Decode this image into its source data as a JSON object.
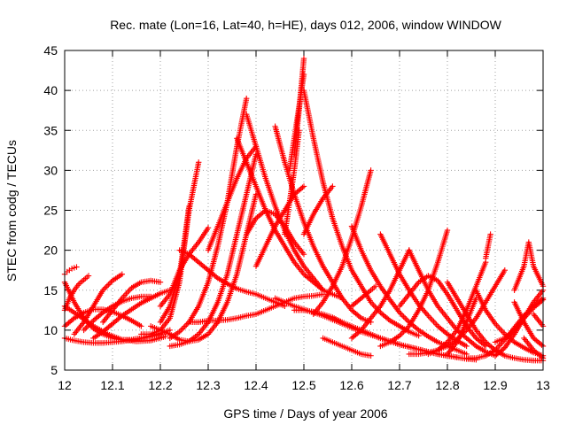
{
  "chart_data": {
    "type": "scatter",
    "title": "Rec. mate (Lon=16, Lat=40, h=HE), days 012, 2006, window WINDOW",
    "xlabel": "GPS time / Days of year 2006",
    "ylabel": "STEC from codg / TECUs",
    "xlim": [
      12,
      13
    ],
    "ylim": [
      5,
      45
    ],
    "x_ticks": [
      12,
      12.1,
      12.2,
      12.3,
      12.4,
      12.5,
      12.6,
      12.7,
      12.8,
      12.9,
      13
    ],
    "x_tick_labels": [
      "12",
      "12.1",
      "12.2",
      "12.3",
      "12.4",
      "12.5",
      "12.6",
      "12.7",
      "12.8",
      "12.9",
      "13"
    ],
    "y_ticks": [
      5,
      10,
      15,
      20,
      25,
      30,
      35,
      40,
      45
    ],
    "y_tick_labels": [
      "5",
      "10",
      "15",
      "20",
      "25",
      "30",
      "35",
      "40",
      "45"
    ],
    "grid": true,
    "marker": "+",
    "color": "#ff0000",
    "series": [
      {
        "x": [
          12.0,
          12.005,
          12.01,
          12.015,
          12.02,
          12.025
        ],
        "y": [
          17.0,
          17.3,
          17.5,
          17.7,
          17.8,
          17.9
        ]
      },
      {
        "x": [
          12.0,
          12.02,
          12.04,
          12.06,
          12.08,
          12.1,
          12.12,
          12.14,
          12.16,
          12.18,
          12.2
        ],
        "y": [
          16.0,
          13.5,
          11.5,
          10.2,
          9.5,
          9.0,
          8.8,
          8.8,
          9.0,
          9.2,
          9.5
        ]
      },
      {
        "x": [
          12.0,
          12.01,
          12.02,
          12.03,
          12.04,
          12.05
        ],
        "y": [
          12.5,
          14.0,
          15.0,
          15.8,
          16.3,
          16.8
        ]
      },
      {
        "x": [
          12.0,
          12.03,
          12.06,
          12.09,
          12.12,
          12.15,
          12.18,
          12.21
        ],
        "y": [
          13.0,
          11.8,
          10.5,
          9.5,
          8.8,
          8.6,
          8.7,
          9.2
        ]
      },
      {
        "x": [
          12.0,
          12.02,
          12.04,
          12.06,
          12.08,
          12.1,
          12.12,
          12.14,
          12.16,
          12.18,
          12.2,
          12.22
        ],
        "y": [
          9.0,
          8.7,
          8.5,
          8.4,
          8.4,
          8.5,
          8.6,
          8.8,
          9.0,
          9.3,
          9.6,
          10.0
        ]
      },
      {
        "x": [
          12.0,
          12.02,
          12.04,
          12.06,
          12.08,
          12.1,
          12.12,
          12.14,
          12.16
        ],
        "y": [
          10.5,
          11.5,
          12.2,
          12.6,
          12.6,
          12.3,
          11.8,
          11.2,
          10.5
        ]
      },
      {
        "x": [
          12.02,
          12.04,
          12.06,
          12.08,
          12.1,
          12.12
        ],
        "y": [
          9.5,
          11.0,
          13.0,
          15.0,
          16.2,
          17.0
        ]
      },
      {
        "x": [
          12.04,
          12.06,
          12.08,
          12.1,
          12.12,
          12.14,
          12.16,
          12.18
        ],
        "y": [
          10.0,
          11.2,
          12.2,
          13.0,
          13.6,
          14.0,
          14.2,
          14.2
        ]
      },
      {
        "x": [
          12.06,
          12.08,
          12.1,
          12.12,
          12.14,
          12.16,
          12.18,
          12.2,
          12.22
        ],
        "y": [
          9.0,
          9.8,
          10.8,
          11.8,
          12.6,
          13.4,
          14.0,
          14.6,
          15.0
        ]
      },
      {
        "x": [
          12.08,
          12.1,
          12.12,
          12.14,
          12.16,
          12.18,
          12.2
        ],
        "y": [
          11.0,
          12.5,
          14.0,
          15.3,
          16.0,
          16.2,
          16.0
        ]
      },
      {
        "x": [
          12.16,
          12.18,
          12.2,
          12.22,
          12.24,
          12.26,
          12.28
        ],
        "y": [
          9.5,
          9.5,
          10.0,
          11.5,
          16.0,
          25.0,
          31.0
        ]
      },
      {
        "x": [
          12.2,
          12.22,
          12.24,
          12.25,
          12.26
        ],
        "y": [
          11.0,
          13.0,
          17.0,
          21.0,
          25.5
        ]
      },
      {
        "x": [
          12.2,
          12.22,
          12.24,
          12.26,
          12.28,
          12.3
        ],
        "y": [
          13.0,
          14.5,
          17.5,
          19.5,
          21.0,
          22.8
        ]
      },
      {
        "x": [
          12.18,
          12.2,
          12.22,
          12.24,
          12.26,
          12.28,
          12.3,
          12.32,
          12.34,
          12.36,
          12.38,
          12.4
        ],
        "y": [
          10.5,
          10.0,
          9.5,
          8.8,
          8.6,
          8.8,
          9.5,
          11.0,
          13.5,
          17.0,
          22.0,
          27.0
        ]
      },
      {
        "x": [
          12.22,
          12.24,
          12.26,
          12.28,
          12.3,
          12.32,
          12.34,
          12.36,
          12.38,
          12.4
        ],
        "y": [
          8.0,
          8.2,
          8.6,
          9.5,
          11.0,
          13.5,
          17.0,
          22.0,
          27.0,
          32.0
        ]
      },
      {
        "x": [
          12.22,
          12.24,
          12.26,
          12.28,
          12.3,
          12.32,
          12.34,
          12.36,
          12.38
        ],
        "y": [
          9.0,
          9.8,
          11.0,
          13.0,
          16.0,
          20.5,
          26.0,
          33.0,
          39.0
        ]
      },
      {
        "x": [
          12.24,
          12.26,
          12.28,
          12.3,
          12.32,
          12.34,
          12.36,
          12.38,
          12.4,
          12.42,
          12.44,
          12.46
        ],
        "y": [
          20.0,
          19.5,
          18.5,
          17.5,
          16.5,
          15.8,
          15.2,
          14.8,
          14.5,
          14.0,
          13.5,
          13.0
        ]
      },
      {
        "x": [
          12.26,
          12.28,
          12.3,
          12.32,
          12.34,
          12.36,
          12.38,
          12.4,
          12.42,
          12.44,
          12.46,
          12.48,
          12.5,
          12.52,
          12.54
        ],
        "y": [
          11.0,
          11.0,
          11.2,
          11.2,
          11.3,
          11.5,
          11.8,
          12.0,
          12.5,
          13.0,
          13.5,
          14.0,
          14.2,
          14.3,
          14.5
        ]
      },
      {
        "x": [
          12.3,
          12.32,
          12.34,
          12.36,
          12.38,
          12.4
        ],
        "y": [
          20.0,
          23.0,
          26.0,
          29.0,
          31.5,
          33.0
        ]
      },
      {
        "x": [
          12.36,
          12.38,
          12.4,
          12.42,
          12.44,
          12.46,
          12.48,
          12.5,
          12.52,
          12.54,
          12.56,
          12.58
        ],
        "y": [
          34.0,
          31.0,
          28.0,
          25.0,
          22.5,
          20.5,
          18.5,
          17.0,
          16.0,
          15.0,
          14.5,
          14.0
        ]
      },
      {
        "x": [
          12.38,
          12.4,
          12.42,
          12.44,
          12.46,
          12.48,
          12.5,
          12.52,
          12.54
        ],
        "y": [
          37.0,
          33.0,
          29.0,
          25.5,
          22.5,
          20.0,
          18.0,
          16.5,
          15.0
        ]
      },
      {
        "x": [
          12.38,
          12.4,
          12.42,
          12.44,
          12.46,
          12.48,
          12.5
        ],
        "y": [
          22.0,
          24.0,
          25.0,
          24.5,
          23.0,
          21.0,
          19.5
        ]
      },
      {
        "x": [
          12.4,
          12.42,
          12.44,
          12.46,
          12.48,
          12.5
        ],
        "y": [
          18.0,
          20.5,
          23.0,
          25.0,
          27.0,
          28.0
        ]
      },
      {
        "x": [
          12.44,
          12.46,
          12.48,
          12.5,
          12.52,
          12.54,
          12.56,
          12.58,
          12.6,
          12.62,
          12.64
        ],
        "y": [
          35.5,
          31.0,
          27.0,
          23.5,
          20.5,
          18.0,
          16.0,
          14.0,
          12.5,
          11.5,
          11.0
        ]
      },
      {
        "x": [
          12.46,
          12.47,
          12.48,
          12.49
        ],
        "y": [
          22.0,
          26.0,
          30.0,
          35.0
        ]
      },
      {
        "x": [
          12.47,
          12.48,
          12.49,
          12.5
        ],
        "y": [
          30.0,
          34.0,
          38.0,
          42.0
        ]
      },
      {
        "x": [
          12.48,
          12.49,
          12.5
        ],
        "y": [
          32.0,
          37.5,
          44.0
        ]
      },
      {
        "x": [
          12.5,
          12.52,
          12.54,
          12.56,
          12.58,
          12.6,
          12.62,
          12.64,
          12.66,
          12.68,
          12.7,
          12.72,
          12.74
        ],
        "y": [
          40.0,
          34.0,
          28.5,
          24.0,
          20.5,
          17.5,
          15.5,
          13.5,
          12.2,
          11.2,
          10.5,
          9.8,
          9.3
        ]
      },
      {
        "x": [
          12.5,
          12.52,
          12.54,
          12.56
        ],
        "y": [
          22.0,
          24.5,
          26.5,
          28.0
        ]
      },
      {
        "x": [
          12.52,
          12.54,
          12.56,
          12.58,
          12.6,
          12.62,
          12.64
        ],
        "y": [
          12.0,
          13.5,
          15.5,
          18.0,
          21.5,
          25.5,
          30.0
        ]
      },
      {
        "x": [
          12.48,
          12.5,
          12.52,
          12.54,
          12.56,
          12.58,
          12.6,
          12.62,
          12.64,
          12.66,
          12.68,
          12.7,
          12.72,
          12.74,
          12.76,
          12.78,
          12.8,
          12.82
        ],
        "y": [
          12.5,
          12.5,
          12.3,
          12.0,
          11.6,
          11.0,
          10.5,
          10.0,
          9.5,
          9.0,
          8.6,
          8.2,
          7.9,
          7.6,
          7.3,
          7.0,
          6.8,
          6.6
        ]
      },
      {
        "x": [
          12.44,
          12.46,
          12.48,
          12.5,
          12.52,
          12.54,
          12.56,
          12.58,
          12.6,
          12.62,
          12.64,
          12.66,
          12.68,
          12.7,
          12.72,
          12.74,
          12.76,
          12.78,
          12.8,
          12.82,
          12.84,
          12.86
        ],
        "y": [
          14.0,
          13.5,
          13.0,
          12.6,
          12.2,
          11.8,
          11.3,
          10.8,
          10.3,
          9.8,
          9.4,
          9.0,
          8.6,
          8.2,
          7.9,
          7.6,
          7.3,
          7.0,
          6.8,
          6.6,
          6.4,
          6.3
        ]
      },
      {
        "x": [
          12.54,
          12.56,
          12.58,
          12.6,
          12.62,
          12.64
        ],
        "y": [
          9.0,
          8.5,
          8.0,
          7.5,
          7.0,
          6.8
        ]
      },
      {
        "x": [
          12.6,
          12.62,
          12.64,
          12.66,
          12.68,
          12.7,
          12.72,
          12.74,
          12.76,
          12.78,
          12.8,
          12.82,
          12.84
        ],
        "y": [
          23.0,
          20.0,
          17.5,
          15.5,
          13.8,
          12.2,
          11.0,
          10.0,
          9.2,
          8.5,
          8.0,
          7.5,
          7.0
        ]
      },
      {
        "x": [
          12.6,
          12.62,
          12.64,
          12.65
        ],
        "y": [
          13.0,
          14.0,
          15.0,
          15.5
        ]
      },
      {
        "x": [
          12.66,
          12.68,
          12.7,
          12.72,
          12.74,
          12.76,
          12.78,
          12.8,
          12.82,
          12.84
        ],
        "y": [
          22.0,
          19.5,
          17.0,
          15.0,
          13.2,
          11.8,
          10.5,
          9.5,
          8.7,
          8.0
        ]
      },
      {
        "x": [
          12.6,
          12.62,
          12.64,
          12.66,
          12.68,
          12.7,
          12.72
        ],
        "y": [
          9.0,
          10.0,
          11.5,
          13.0,
          15.0,
          17.5,
          20.0
        ]
      },
      {
        "x": [
          12.66,
          12.68,
          12.7,
          12.72,
          12.74,
          12.76,
          12.78,
          12.8
        ],
        "y": [
          8.0,
          8.5,
          9.3,
          10.5,
          12.5,
          15.0,
          18.5,
          22.5
        ]
      },
      {
        "x": [
          12.7,
          12.72,
          12.74,
          12.76,
          12.78,
          12.8,
          12.82,
          12.84,
          12.86,
          12.88
        ],
        "y": [
          13.0,
          14.5,
          16.0,
          16.8,
          16.2,
          14.5,
          12.5,
          10.5,
          9.0,
          8.0
        ]
      },
      {
        "x": [
          12.72,
          12.74,
          12.76,
          12.78,
          12.8,
          12.82,
          12.84,
          12.86,
          12.88,
          12.9
        ],
        "y": [
          20.0,
          17.5,
          15.0,
          13.0,
          11.5,
          10.0,
          9.0,
          8.0,
          7.3,
          6.8
        ]
      },
      {
        "x": [
          12.72,
          12.74,
          12.76,
          12.78,
          12.8,
          12.82,
          12.84,
          12.86,
          12.88,
          12.9,
          12.92
        ],
        "y": [
          7.0,
          7.0,
          7.2,
          7.5,
          8.0,
          8.8,
          10.0,
          11.5,
          13.5,
          15.5,
          17.5
        ]
      },
      {
        "x": [
          12.76,
          12.78,
          12.8,
          12.82,
          12.84,
          12.86,
          12.88
        ],
        "y": [
          7.0,
          7.5,
          8.5,
          10.0,
          12.5,
          15.5,
          18.5
        ]
      },
      {
        "x": [
          12.8,
          12.82,
          12.84,
          12.86,
          12.88,
          12.9,
          12.92,
          12.94,
          12.96,
          12.98,
          13.0
        ],
        "y": [
          16.0,
          14.0,
          12.0,
          10.0,
          8.5,
          7.5,
          6.8,
          6.5,
          6.3,
          6.2,
          6.2
        ]
      },
      {
        "x": [
          12.8,
          12.82,
          12.84,
          12.86
        ],
        "y": [
          7.0,
          8.5,
          11.0,
          14.0
        ]
      },
      {
        "x": [
          12.84,
          12.86,
          12.88,
          12.9,
          12.92,
          12.94,
          12.96,
          12.98,
          13.0
        ],
        "y": [
          6.5,
          6.5,
          6.8,
          7.5,
          8.8,
          10.3,
          11.8,
          13.0,
          14.0
        ]
      },
      {
        "x": [
          12.86,
          12.88,
          12.9,
          12.92,
          12.94,
          12.96,
          12.98,
          13.0
        ],
        "y": [
          15.0,
          12.5,
          10.8,
          9.5,
          8.5,
          7.8,
          7.2,
          6.8
        ]
      },
      {
        "x": [
          12.88,
          12.89
        ],
        "y": [
          19.0,
          22.0
        ]
      },
      {
        "x": [
          12.9,
          12.92,
          12.94,
          12.96,
          12.98,
          13.0
        ],
        "y": [
          6.8,
          7.8,
          9.5,
          11.5,
          13.5,
          15.0
        ]
      },
      {
        "x": [
          12.9,
          12.92,
          12.94,
          12.96,
          12.98,
          13.0
        ],
        "y": [
          8.5,
          9.0,
          10.0,
          11.5,
          12.8,
          13.8
        ]
      },
      {
        "x": [
          12.94,
          12.96,
          12.97,
          12.98,
          13.0
        ],
        "y": [
          15.0,
          18.0,
          21.0,
          18.0,
          15.5
        ]
      },
      {
        "x": [
          12.94,
          12.96,
          12.98,
          13.0
        ],
        "y": [
          13.5,
          11.0,
          9.0,
          8.0
        ]
      },
      {
        "x": [
          12.96,
          12.98,
          13.0
        ],
        "y": [
          9.0,
          7.5,
          6.5
        ]
      },
      {
        "x": [
          12.98,
          13.0
        ],
        "y": [
          12.0,
          10.5
        ]
      }
    ]
  }
}
